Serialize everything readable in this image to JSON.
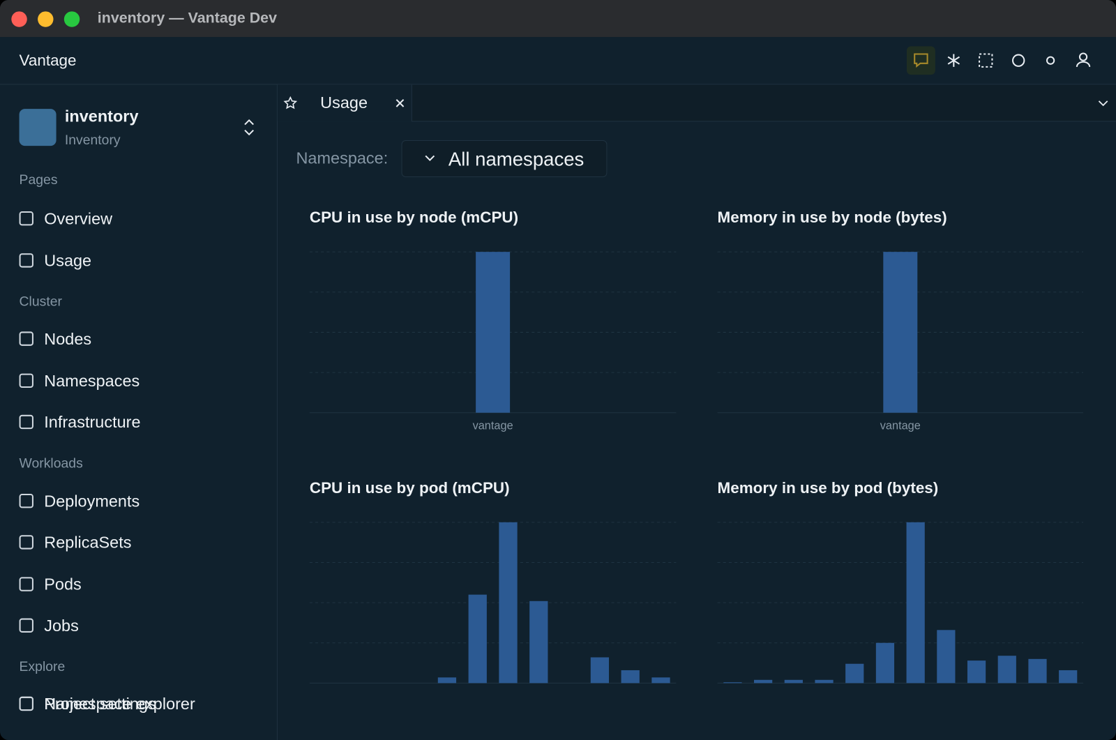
{
  "window": {
    "title": "inventory — Vantage Dev"
  },
  "app": {
    "name": "Vantage"
  },
  "project": {
    "name": "inventory",
    "subtitle": "Inventory"
  },
  "sidebar": {
    "sections": [
      {
        "label": "Pages",
        "items": [
          "Overview",
          "Usage"
        ]
      },
      {
        "label": "Cluster",
        "items": [
          "Nodes",
          "Namespaces",
          "Infrastructure"
        ]
      },
      {
        "label": "Workloads",
        "items": [
          "Deployments",
          "ReplicaSets",
          "Pods",
          "Jobs"
        ]
      },
      {
        "label": "Explore",
        "items": [
          "Namespace explorer",
          "Project settings"
        ]
      }
    ]
  },
  "tab": {
    "label": "Usage"
  },
  "filter": {
    "label": "Namespace:",
    "value": "All namespaces"
  },
  "chart_data": [
    {
      "type": "bar",
      "title": "CPU in use by node (mCPU)",
      "categories": [
        "vantage"
      ],
      "values": [
        100
      ],
      "color": "#2c5a93",
      "ylim": [
        0,
        100
      ],
      "yticks": [
        0,
        25,
        50,
        75,
        100
      ],
      "grid": true
    },
    {
      "type": "bar",
      "title": "Memory in use by node (bytes)",
      "categories": [
        "vantage"
      ],
      "values": [
        100
      ],
      "color": "#2c5a93",
      "ylim": [
        0,
        100
      ],
      "yticks": [
        0,
        25,
        50,
        75,
        100
      ],
      "grid": true
    },
    {
      "type": "bar",
      "title": "CPU in use by pod (mCPU)",
      "categories": [
        null,
        null,
        null,
        null,
        null,
        null,
        null,
        null,
        null,
        null,
        null,
        null
      ],
      "values": [
        0,
        0,
        0,
        0,
        3.5,
        55,
        100,
        51,
        0,
        16,
        8,
        3.5
      ],
      "color": "#2c5a93",
      "ylim": [
        0,
        100
      ],
      "yticks": [
        0,
        25,
        50,
        75,
        100
      ],
      "grid": true
    },
    {
      "type": "bar",
      "title": "Memory in use by pod (bytes)",
      "categories": [
        null,
        null,
        null,
        null,
        null,
        null,
        null,
        null,
        null,
        null,
        null,
        null
      ],
      "values": [
        0.5,
        2,
        2,
        2,
        12,
        25,
        100,
        33,
        14,
        17,
        15,
        8
      ],
      "color": "#2c5a93",
      "ylim": [
        0,
        100
      ],
      "yticks": [
        0,
        25,
        50,
        75,
        100
      ],
      "grid": true
    }
  ]
}
